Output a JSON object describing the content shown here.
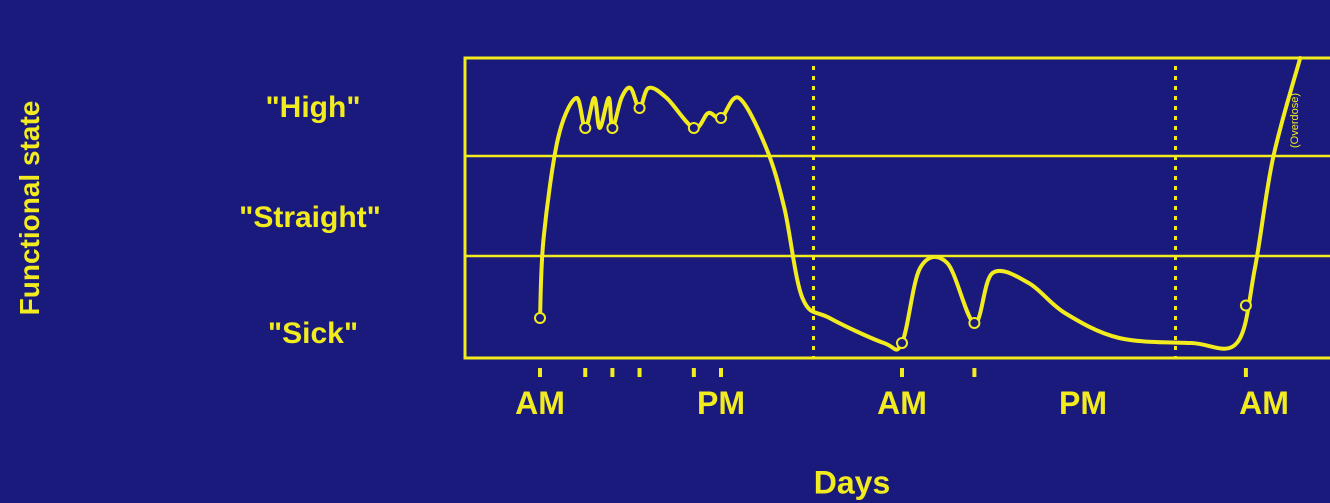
{
  "chart_data": {
    "type": "line",
    "ylabel": "Functional state",
    "xlabel": "Days",
    "bands": [
      "\"High\"",
      "\"Straight\"",
      "\"Sick\""
    ],
    "x_tick_labels": [
      {
        "label": "AM",
        "x": 0
      },
      {
        "label": "PM",
        "x": 1
      },
      {
        "label": "AM",
        "x": 2
      },
      {
        "label": "PM",
        "x": 3
      },
      {
        "label": "AM",
        "x": 4
      }
    ],
    "xlim": [
      0,
      4.2
    ],
    "ylim": [
      0,
      3
    ],
    "day_boundaries": [
      1.5,
      3.5
    ],
    "dose_times": [
      0,
      0.25,
      0.4,
      0.55,
      0.85,
      1.0,
      2.0,
      2.4,
      3.9
    ],
    "series": [
      {
        "values": [
          [
            0,
            0.4
          ],
          [
            0.02,
            1.2
          ],
          [
            0.1,
            2.2
          ],
          [
            0.2,
            2.6
          ],
          [
            0.25,
            2.3
          ],
          [
            0.3,
            2.6
          ],
          [
            0.33,
            2.3
          ],
          [
            0.38,
            2.6
          ],
          [
            0.4,
            2.3
          ],
          [
            0.45,
            2.6
          ],
          [
            0.5,
            2.7
          ],
          [
            0.55,
            2.5
          ],
          [
            0.6,
            2.7
          ],
          [
            0.7,
            2.6
          ],
          [
            0.85,
            2.3
          ],
          [
            0.93,
            2.45
          ],
          [
            1.0,
            2.4
          ],
          [
            1.1,
            2.6
          ],
          [
            1.25,
            2.1
          ],
          [
            1.35,
            1.5
          ],
          [
            1.45,
            0.6
          ],
          [
            1.6,
            0.4
          ],
          [
            1.9,
            0.15
          ],
          [
            2.0,
            0.15
          ],
          [
            2.1,
            0.9
          ],
          [
            2.25,
            0.95
          ],
          [
            2.4,
            0.35
          ],
          [
            2.5,
            0.85
          ],
          [
            2.7,
            0.75
          ],
          [
            2.9,
            0.45
          ],
          [
            3.2,
            0.2
          ],
          [
            3.6,
            0.15
          ],
          [
            3.85,
            0.15
          ],
          [
            3.95,
            0.9
          ],
          [
            4.05,
            2.0
          ],
          [
            4.2,
            3.0
          ]
        ]
      }
    ],
    "annotation": "(Overdose)"
  }
}
